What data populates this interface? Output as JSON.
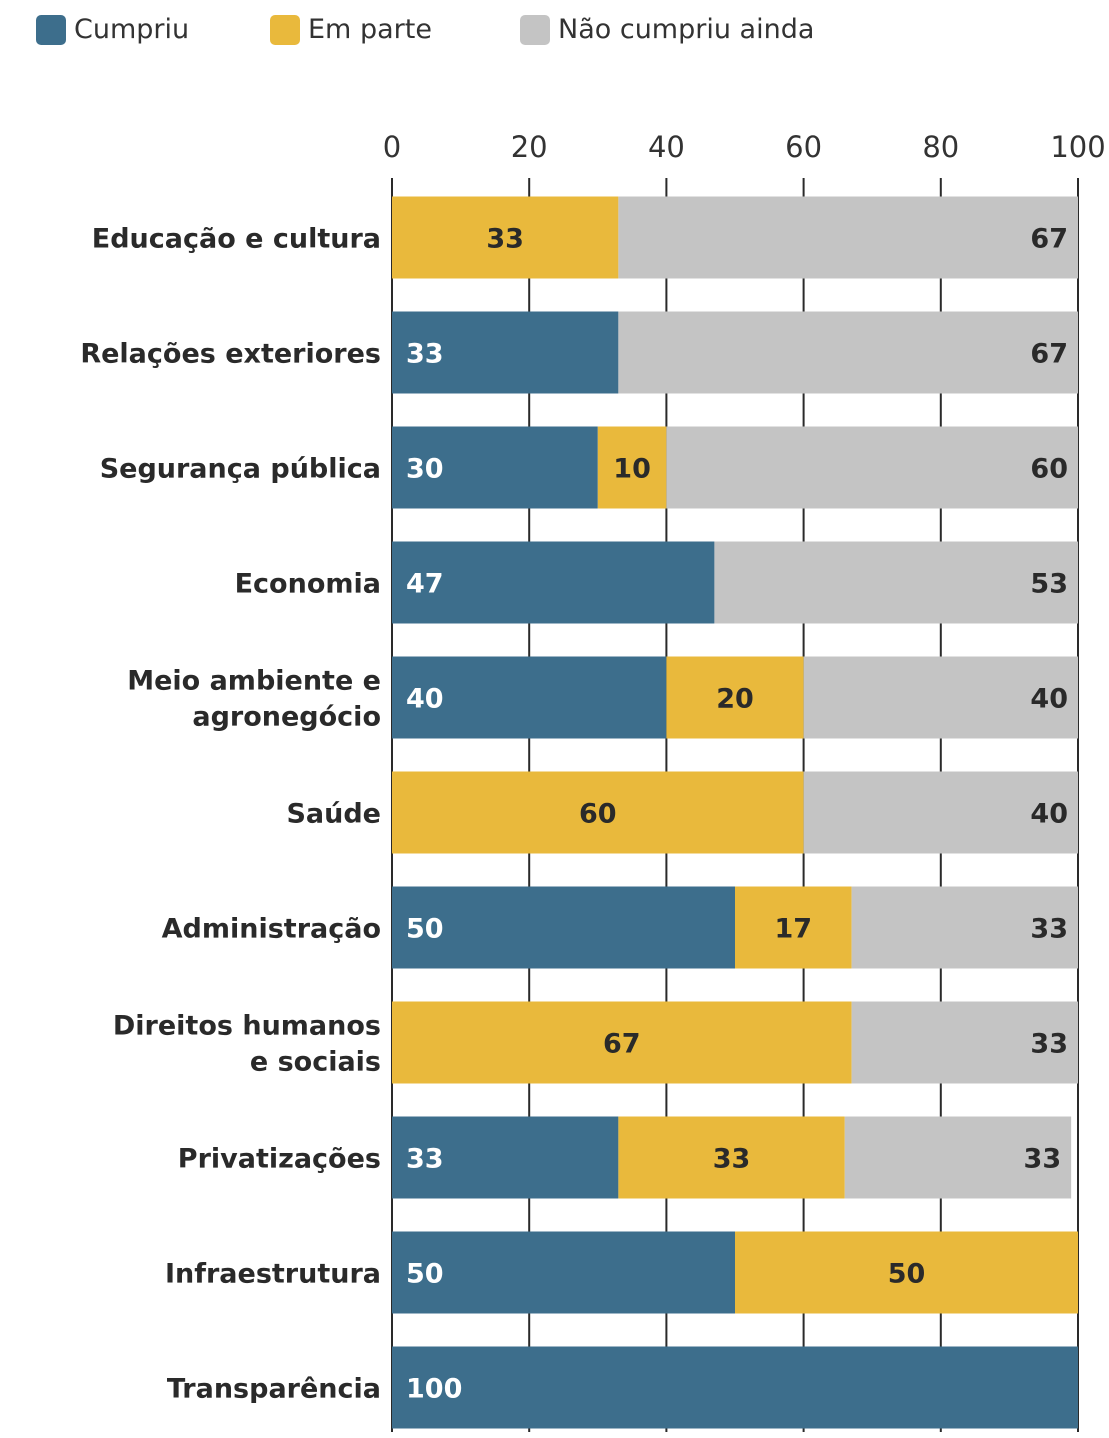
{
  "chart_data": {
    "type": "bar",
    "orientation": "horizontal",
    "stacked": true,
    "categories": [
      "Educação e cultura",
      "Relações exteriores",
      "Segurança pública",
      "Economia",
      "Meio ambiente e agronegócio",
      "Saúde",
      "Administração",
      "Direitos humanos e sociais",
      "Privatizações",
      "Infraestrutura",
      "Transparência"
    ],
    "category_lines": [
      [
        "Educação e cultura"
      ],
      [
        "Relações exteriores"
      ],
      [
        "Segurança pública"
      ],
      [
        "Economia"
      ],
      [
        "Meio ambiente e",
        "agronegócio"
      ],
      [
        "Saúde"
      ],
      [
        "Administração"
      ],
      [
        "Direitos humanos",
        "e sociais"
      ],
      [
        "Privatizações"
      ],
      [
        "Infraestrutura"
      ],
      [
        "Transparência"
      ]
    ],
    "series": [
      {
        "name": "Cumpriu",
        "color": "#3d6e8c",
        "label_color": "#ffffff",
        "values": [
          0,
          33,
          30,
          47,
          40,
          0,
          50,
          0,
          33,
          50,
          100
        ]
      },
      {
        "name": "Em parte",
        "color": "#e9b93c",
        "label_color": "#2a2a2a",
        "values": [
          33,
          0,
          10,
          0,
          20,
          60,
          17,
          67,
          33,
          50,
          0
        ]
      },
      {
        "name": "Não cumpriu ainda",
        "color": "#c4c4c4",
        "label_color": "#2a2a2a",
        "values": [
          67,
          67,
          60,
          53,
          40,
          40,
          33,
          33,
          33,
          0,
          0
        ]
      }
    ],
    "xlim": [
      0,
      100
    ],
    "x_ticks": [
      "0",
      "20",
      "40",
      "60",
      "80",
      "100"
    ],
    "x_tick_values": [
      0,
      20,
      40,
      60,
      80,
      100
    ],
    "axis_position": "top",
    "legend_position": "top-left",
    "grid": true,
    "title": "",
    "xlabel": "",
    "ylabel": ""
  }
}
